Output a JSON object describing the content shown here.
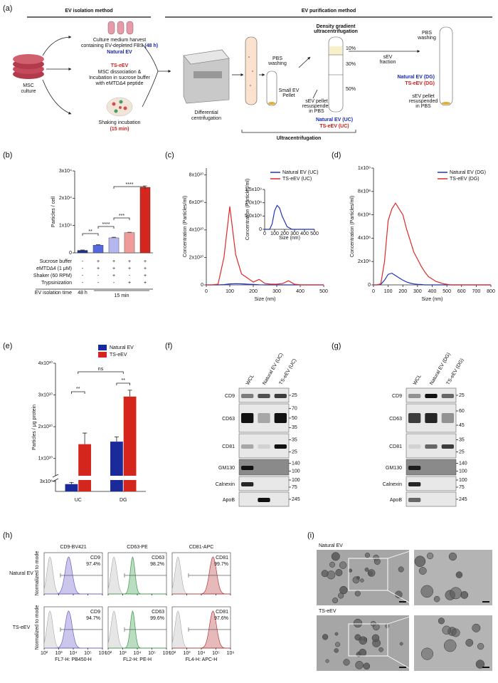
{
  "panel_labels": [
    "(a)",
    "(b)",
    "(c)",
    "(d)",
    "(e)",
    "(f)",
    "(g)",
    "(h)",
    "(i)"
  ],
  "diagram": {
    "headers": [
      "EV isolation method",
      "EV purification method"
    ],
    "harvest": [
      "Culture medium harvest",
      "containing EV-depleted FBS",
      "(48 h)"
    ],
    "natural_ev": "Natural EV",
    "ts_eev": "TS-eEV",
    "dissociation": [
      "MSC dissociation &",
      "Incubation in sucrose buffer",
      "with eMTDΔ4 peptide"
    ],
    "msc": [
      "MSC",
      "culture"
    ],
    "shaking": [
      "Shaking incubation",
      "(15 min)"
    ],
    "differential": [
      "Differential",
      "centrifugation"
    ],
    "pbs1": [
      "PBS",
      "washing"
    ],
    "small_pellet": [
      "Small EV",
      "Pellet"
    ],
    "pellet1": [
      "sEV pellet",
      "resuspended",
      "in PBS"
    ],
    "uc_products": [
      "Natural EV (UC)",
      "TS-eEV (UC)"
    ],
    "uc": "Ultracentrifugation",
    "dg": [
      "Density gradient",
      "ultracentrifugation"
    ],
    "layers": [
      "10%",
      "30%",
      "50%"
    ],
    "fraction": [
      "sEV",
      "fraction"
    ],
    "pbs2": [
      "PBS",
      "washing"
    ],
    "dg_products": [
      "Natural EV (DG)",
      "TS-eEV (DG)"
    ],
    "pellet2": [
      "sEV pellet",
      "resuspended",
      "in PBS"
    ]
  },
  "chart_data": [
    {
      "type": "bar",
      "ylabel": "Particles / cell",
      "categories": [
        null,
        null,
        null,
        null,
        null
      ],
      "values": [
        900,
        2800,
        5500,
        7400,
        24000
      ],
      "errors": [
        150,
        200,
        200,
        150,
        500
      ],
      "colors": [
        "#1f2f8f",
        "#5468e0",
        "#b4b6f0",
        "#f09a9a",
        "#d4261c"
      ],
      "ylim": [
        0,
        30000
      ],
      "yticks": [
        0,
        {
          "value": 10000,
          "label": "1x10⁴"
        },
        {
          "value": 20000,
          "label": "2x10⁴"
        },
        {
          "value": 30000,
          "label": "3x10⁴"
        }
      ],
      "significance": [
        "**",
        "****",
        "***",
        "****"
      ],
      "conditions": [
        {
          "label": "Sucrose buffer",
          "values": [
            "-",
            "+",
            "+",
            "+",
            "+"
          ]
        },
        {
          "label": "eMTDΔ4 (1 μM)",
          "values": [
            "-",
            "+",
            "+",
            "+",
            "+"
          ]
        },
        {
          "label": "Shaker (60 RPM)",
          "values": [
            "-",
            "-",
            "+",
            "-",
            "+"
          ]
        },
        {
          "label": "Trypsinization",
          "values": [
            "-",
            "-",
            "-",
            "+",
            "+"
          ]
        }
      ],
      "time_label": "EV isolation time",
      "times": [
        "48 h",
        "15 min"
      ]
    },
    {
      "type": "line",
      "ylabel": "Concentration (Particles/ml)",
      "xlabel": "Size (nm)",
      "legend": "top-right",
      "x": [
        0,
        25,
        50,
        75,
        100,
        125,
        150,
        175,
        200,
        225,
        250,
        275,
        300,
        325,
        350,
        375,
        400,
        425,
        450,
        475,
        500
      ],
      "series": [
        {
          "name": "Natural EV (UC)",
          "color": "#2233bb",
          "values": [
            0,
            0,
            0,
            200000000,
            700000000,
            900000000,
            800000000,
            500000000,
            300000000,
            100000000,
            0,
            0,
            0,
            0,
            0,
            0,
            0,
            0,
            0,
            0,
            0
          ]
        },
        {
          "name": "TS-eEV (UC)",
          "color": "#dd2a2a",
          "values": [
            0,
            0,
            500000000,
            20000000000,
            57000000000,
            22000000000,
            8000000000,
            5000000000,
            2000000000,
            4000000000,
            1000000000,
            500000000,
            500000000,
            1000000000,
            3000000000,
            500000000,
            0,
            0,
            0,
            0,
            0
          ]
        }
      ],
      "xlim": [
        0,
        500
      ],
      "xticks": [
        0,
        100,
        200,
        300,
        400,
        500
      ],
      "ylim": [
        0,
        85000000000
      ],
      "yticks": [
        0,
        {
          "value": 20000000000,
          "label": "2x10¹⁰"
        },
        {
          "value": 40000000000,
          "label": "4x10¹⁰"
        },
        {
          "value": 60000000000,
          "label": "6x10¹⁰"
        },
        {
          "value": 80000000000,
          "label": "8x10¹⁰"
        }
      ]
    },
    {
      "type": "line",
      "ylabel": "Concentration (Particles/ml)",
      "xlabel": "Size (nm)",
      "x": [
        0,
        25,
        50,
        75,
        100,
        125,
        150,
        175,
        200,
        225,
        250,
        275,
        300,
        325,
        350,
        375,
        400,
        425,
        450,
        475,
        500
      ],
      "series": [
        {
          "color": "#2233bb",
          "values": [
            0,
            0,
            0,
            200000000,
            700000000,
            900000000,
            800000000,
            500000000,
            300000000,
            100000000,
            50000000,
            0,
            0,
            0,
            0,
            0,
            0,
            0,
            0,
            0,
            0
          ]
        }
      ],
      "xlim": [
        0,
        500
      ],
      "xticks": [
        0,
        100,
        200,
        300,
        400,
        500
      ],
      "ylim": [
        0,
        1500000000
      ],
      "yticks": [
        0,
        {
          "value": 500000000,
          "label": "5.0x10⁸"
        },
        {
          "value": 1000000000,
          "label": "1.0x10⁹"
        },
        {
          "value": 1500000000,
          "label": "1.5x10⁹"
        }
      ]
    },
    {
      "type": "line",
      "ylabel": "Concentration (Particles/ml)",
      "xlabel": "Size (nm)",
      "legend": "top-right",
      "x": [
        0,
        25,
        50,
        75,
        100,
        125,
        150,
        175,
        200,
        225,
        250,
        275,
        300,
        325,
        350,
        375,
        400,
        425,
        450,
        475,
        500,
        525,
        550,
        575,
        600,
        625,
        650,
        675,
        700,
        725,
        750,
        775,
        800
      ],
      "series": [
        {
          "name": "Natural EV (DG)",
          "color": "#2233bb",
          "values": [
            0,
            0,
            5000000,
            40000000,
            90000000,
            100000000,
            80000000,
            60000000,
            40000000,
            25000000,
            15000000,
            8000000,
            5000000,
            3000000,
            0,
            0,
            0,
            0,
            0,
            0,
            0,
            0,
            0,
            0,
            0,
            0,
            0,
            0,
            0,
            0,
            0,
            0,
            0
          ]
        },
        {
          "name": "TS-eEV (DG)",
          "color": "#dd2a2a",
          "values": [
            0,
            0,
            10000000,
            200000000,
            550000000,
            650000000,
            700000000,
            650000000,
            600000000,
            480000000,
            380000000,
            280000000,
            220000000,
            160000000,
            110000000,
            70000000,
            50000000,
            30000000,
            20000000,
            10000000,
            5000000,
            0,
            0,
            0,
            0,
            0,
            0,
            0,
            0,
            0,
            0,
            0,
            0
          ]
        }
      ],
      "xlim": [
        0,
        800
      ],
      "xticks": [
        0,
        100,
        200,
        300,
        400,
        500,
        600,
        700,
        800
      ],
      "ylim": [
        0,
        1000000000
      ],
      "yticks": [
        0,
        {
          "value": 200000000,
          "label": "2x10⁸"
        },
        {
          "value": 400000000,
          "label": "4x10⁸"
        },
        {
          "value": 600000000,
          "label": "6x10⁸"
        },
        {
          "value": 800000000,
          "label": "8x10⁸"
        },
        {
          "value": 1000000000,
          "label": "1x10⁹"
        }
      ]
    },
    {
      "type": "bar",
      "ylabel": "Particles / μg protein",
      "legend": "top-right",
      "categories": [
        "UC",
        "DG"
      ],
      "series": [
        {
          "name": "Natural EV",
          "color": "#1a2a9a",
          "values": [
            220000000,
            15300000000
          ],
          "errors": [
            50000000,
            1500000000
          ]
        },
        {
          "name": "TS-eEV",
          "color": "#d4261c",
          "values": [
            14500000000,
            29500000000
          ],
          "errors": [
            3500000000,
            2000000000
          ]
        }
      ],
      "ylim_lower": [
        0,
        300000000
      ],
      "ylim": [
        5000000000,
        40000000000
      ],
      "yticks_lower": [
        {
          "value": 300000000,
          "label": "3x10⁸"
        }
      ],
      "yticks": [
        {
          "value": 10000000000,
          "label": "1x10¹⁰"
        },
        {
          "value": 20000000000,
          "label": "2x10¹⁰"
        },
        {
          "value": 30000000000,
          "label": "3x10¹⁰"
        },
        {
          "value": 40000000000,
          "label": "4x10¹⁰"
        }
      ],
      "significance": [
        "**",
        "ns",
        "**"
      ]
    }
  ],
  "blots": [
    {
      "lanes": [
        "WCL",
        "Natural EV (UC)",
        "TS-eEV (UC)"
      ],
      "rows": [
        {
          "name": "CD9",
          "markers": [
            25
          ]
        },
        {
          "name": "CD63",
          "markers": [
            70,
            50,
            35
          ]
        },
        {
          "name": "CD81",
          "markers": [
            35,
            25
          ]
        },
        {
          "name": "GM130",
          "markers": [
            140,
            100
          ]
        },
        {
          "name": "Calnexin",
          "markers": [
            100,
            75
          ]
        },
        {
          "name": "ApoB",
          "markers": [
            245
          ]
        }
      ]
    },
    {
      "lanes": [
        "WCL",
        "Natural EV (DG)",
        "TS-eEV (DG)"
      ],
      "rows": [
        {
          "name": "CD9",
          "markers": [
            25
          ]
        },
        {
          "name": "CD63",
          "markers": [
            60,
            45
          ]
        },
        {
          "name": "CD81",
          "markers": [
            35,
            25
          ]
        },
        {
          "name": "GM130",
          "markers": [
            140,
            100
          ]
        },
        {
          "name": "Calnexin",
          "markers": [
            100,
            75
          ]
        },
        {
          "name": "ApoB",
          "markers": [
            245
          ]
        }
      ]
    }
  ],
  "flow": {
    "columns": [
      "CD9-BV421",
      "CD63-PE",
      "CD81-APC"
    ],
    "colors": [
      "#6a5fc8",
      "#3a9a4a",
      "#b83838"
    ],
    "ylabel": "Normalized to mode",
    "xlabels": [
      "FL7-H: PB450-H",
      "FL2-H: PE-H",
      "FL4-H: APC-H"
    ],
    "xticks": [
      "10²",
      "10³",
      "10⁴",
      "10⁵",
      "10⁶"
    ],
    "rows": [
      {
        "name": "Natural EV",
        "gates": [
          {
            "marker": "CD9",
            "percent": "97.4%"
          },
          {
            "marker": "CD63",
            "percent": "98.2%"
          },
          {
            "marker": "CD81",
            "percent": "99.7%"
          }
        ]
      },
      {
        "name": "TS-eEV",
        "gates": [
          {
            "marker": "CD9",
            "percent": "94.7%"
          },
          {
            "marker": "CD63",
            "percent": "99.6%"
          },
          {
            "marker": "CD81",
            "percent": "97.6%"
          }
        ]
      }
    ]
  },
  "tem": {
    "labels": [
      "Natural EV",
      "TS-eEV"
    ]
  }
}
